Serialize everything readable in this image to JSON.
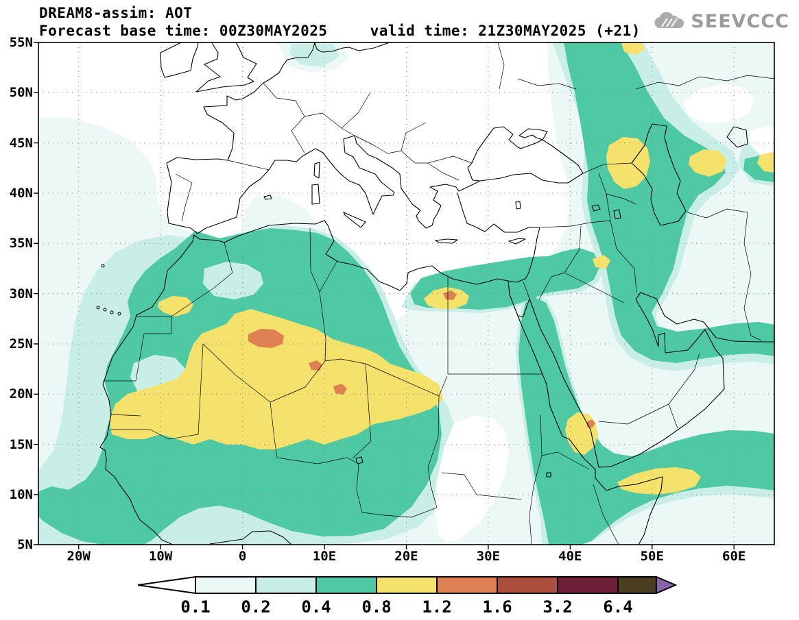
{
  "header": {
    "title": "DREAM8-assim: AOT",
    "subtitle_left": "Forecast base time: 00Z30MAY2025",
    "subtitle_right": "valid time: 21Z30MAY2025 (+21)",
    "logo_text": "SEEVCCC",
    "logo_icon": "cloud-icon"
  },
  "map": {
    "lat_ticks": [
      "55N",
      "50N",
      "45N",
      "40N",
      "35N",
      "30N",
      "25N",
      "20N",
      "15N",
      "10N",
      "5N"
    ],
    "lon_ticks": [
      "20W",
      "10W",
      "0",
      "10E",
      "20E",
      "30E",
      "40E",
      "50E",
      "60E"
    ]
  },
  "chart_data": {
    "type": "heatmap",
    "title": "DREAM8-assim: AOT",
    "variable": "AOT",
    "forecast_base_time": "00Z30MAY2025",
    "valid_time": "21Z30MAY2025",
    "forecast_hour": "+21",
    "lon_range_deg": [
      -25,
      65
    ],
    "lat_range_deg": [
      5,
      55
    ],
    "lat_grid_interval_deg": 5,
    "lon_grid_interval_deg": 10,
    "grid": true,
    "legend_position": "bottom",
    "levels": [
      0.1,
      0.2,
      0.4,
      0.8,
      1.2,
      1.6,
      3.2,
      6.4
    ],
    "level_labels": [
      "0.1",
      "0.2",
      "0.4",
      "0.8",
      "1.2",
      "1.6",
      "3.2",
      "6.4"
    ],
    "colors": {
      "below_min": "#ffffff",
      "cells": [
        "#ecf8f5",
        "#c8eee7",
        "#4ec9a4",
        "#f4e26d",
        "#df8153",
        "#ab4e3e",
        "#6e2038",
        "#4a3d20"
      ],
      "above_max": "#8a63a8"
    },
    "features": [
      {
        "region": "Central Sahara, S Algeria (~25.5N 3E)",
        "aot_range": "1.2-1.6"
      },
      {
        "region": "NE Niger (~22.8N 9E)",
        "aot_range": "1.2-1.6"
      },
      {
        "region": "N Chad (~20.5N 12E)",
        "aot_range": "1.2-1.6"
      },
      {
        "region": "NW Egypt / NE Libya (~29.5N 24.5E)",
        "aot_range": "1.2-1.6"
      },
      {
        "region": "S Red Sea coast (~17N 42.5E)",
        "aot_range": "1.2-1.6"
      },
      {
        "region": "Sahara-wide plume Mauritania-Mali-Niger-S Algeria-S Libya-NW Sudan",
        "aot_range": "0.8-1.2"
      },
      {
        "region": "SW Morocco (~29N 8W)",
        "aot_range": "0.8-1.2"
      },
      {
        "region": "S Red Sea / SW Arabia (~16N 41.5E)",
        "aot_range": "0.8-1.2"
      },
      {
        "region": "Gulf of Aden / N Somalia (~11.5N 50E)",
        "aot_range": "0.8-1.2"
      },
      {
        "region": "Caucasus / W Caspian (~43N 47E)",
        "aot_range": "0.8-1.2"
      },
      {
        "region": "E of Caspian (~43N 56E)",
        "aot_range": "0.8-1.2"
      },
      {
        "region": "Right edge (~43N 64E)",
        "aot_range": "0.8-1.2"
      },
      {
        "region": "Broad N Africa and Middle East plume incl. Red Sea, Iraq-Iran, Horn of Africa",
        "aot_range": "0.4-0.8"
      },
      {
        "region": "Atlantic off W Africa, Sahel, E Mediterranean, Arabia interior, Kazakh steppe band",
        "aot_range": "0.1-0.4"
      }
    ]
  }
}
